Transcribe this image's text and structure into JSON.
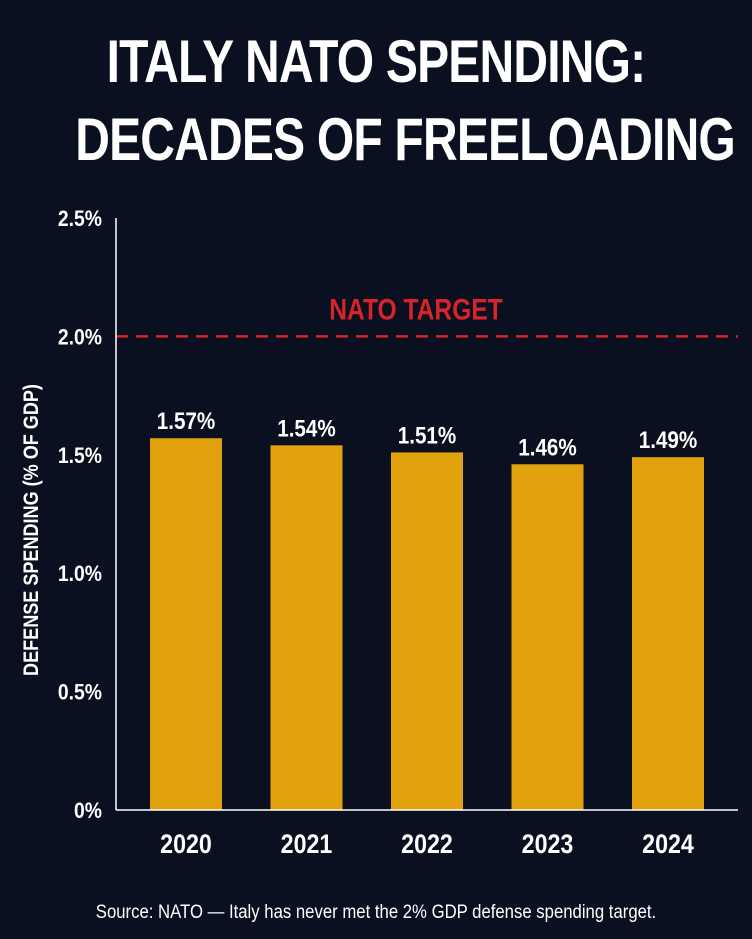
{
  "chart_data": {
    "type": "bar",
    "title_lines": [
      "ITALY NATO SPENDING:",
      "DECADES OF FREELOADING"
    ],
    "categories": [
      "2020",
      "2021",
      "2022",
      "2023",
      "2024"
    ],
    "values": [
      1.57,
      1.54,
      1.51,
      1.46,
      1.49
    ],
    "value_labels": [
      "1.57%",
      "1.54%",
      "1.51%",
      "1.46%",
      "1.49%"
    ],
    "ylabel": "DEFENSE SPENDING (% OF GDP)",
    "ylim": [
      0,
      2.5
    ],
    "yticks": [
      0,
      0.5,
      1.0,
      1.5,
      2.0,
      2.5
    ],
    "ytick_labels": [
      "0%",
      "0.5%",
      "1.0%",
      "1.5%",
      "2.0%",
      "2.5%"
    ],
    "target": {
      "value": 2.0,
      "label": "NATO TARGET"
    },
    "grid": false,
    "colors": {
      "background": "#0b1020",
      "bar": "#e2a20e",
      "target": "#d9222a",
      "text": "#ffffff"
    }
  },
  "source": "Source: NATO — Italy has never met the 2% GDP defense spending target."
}
